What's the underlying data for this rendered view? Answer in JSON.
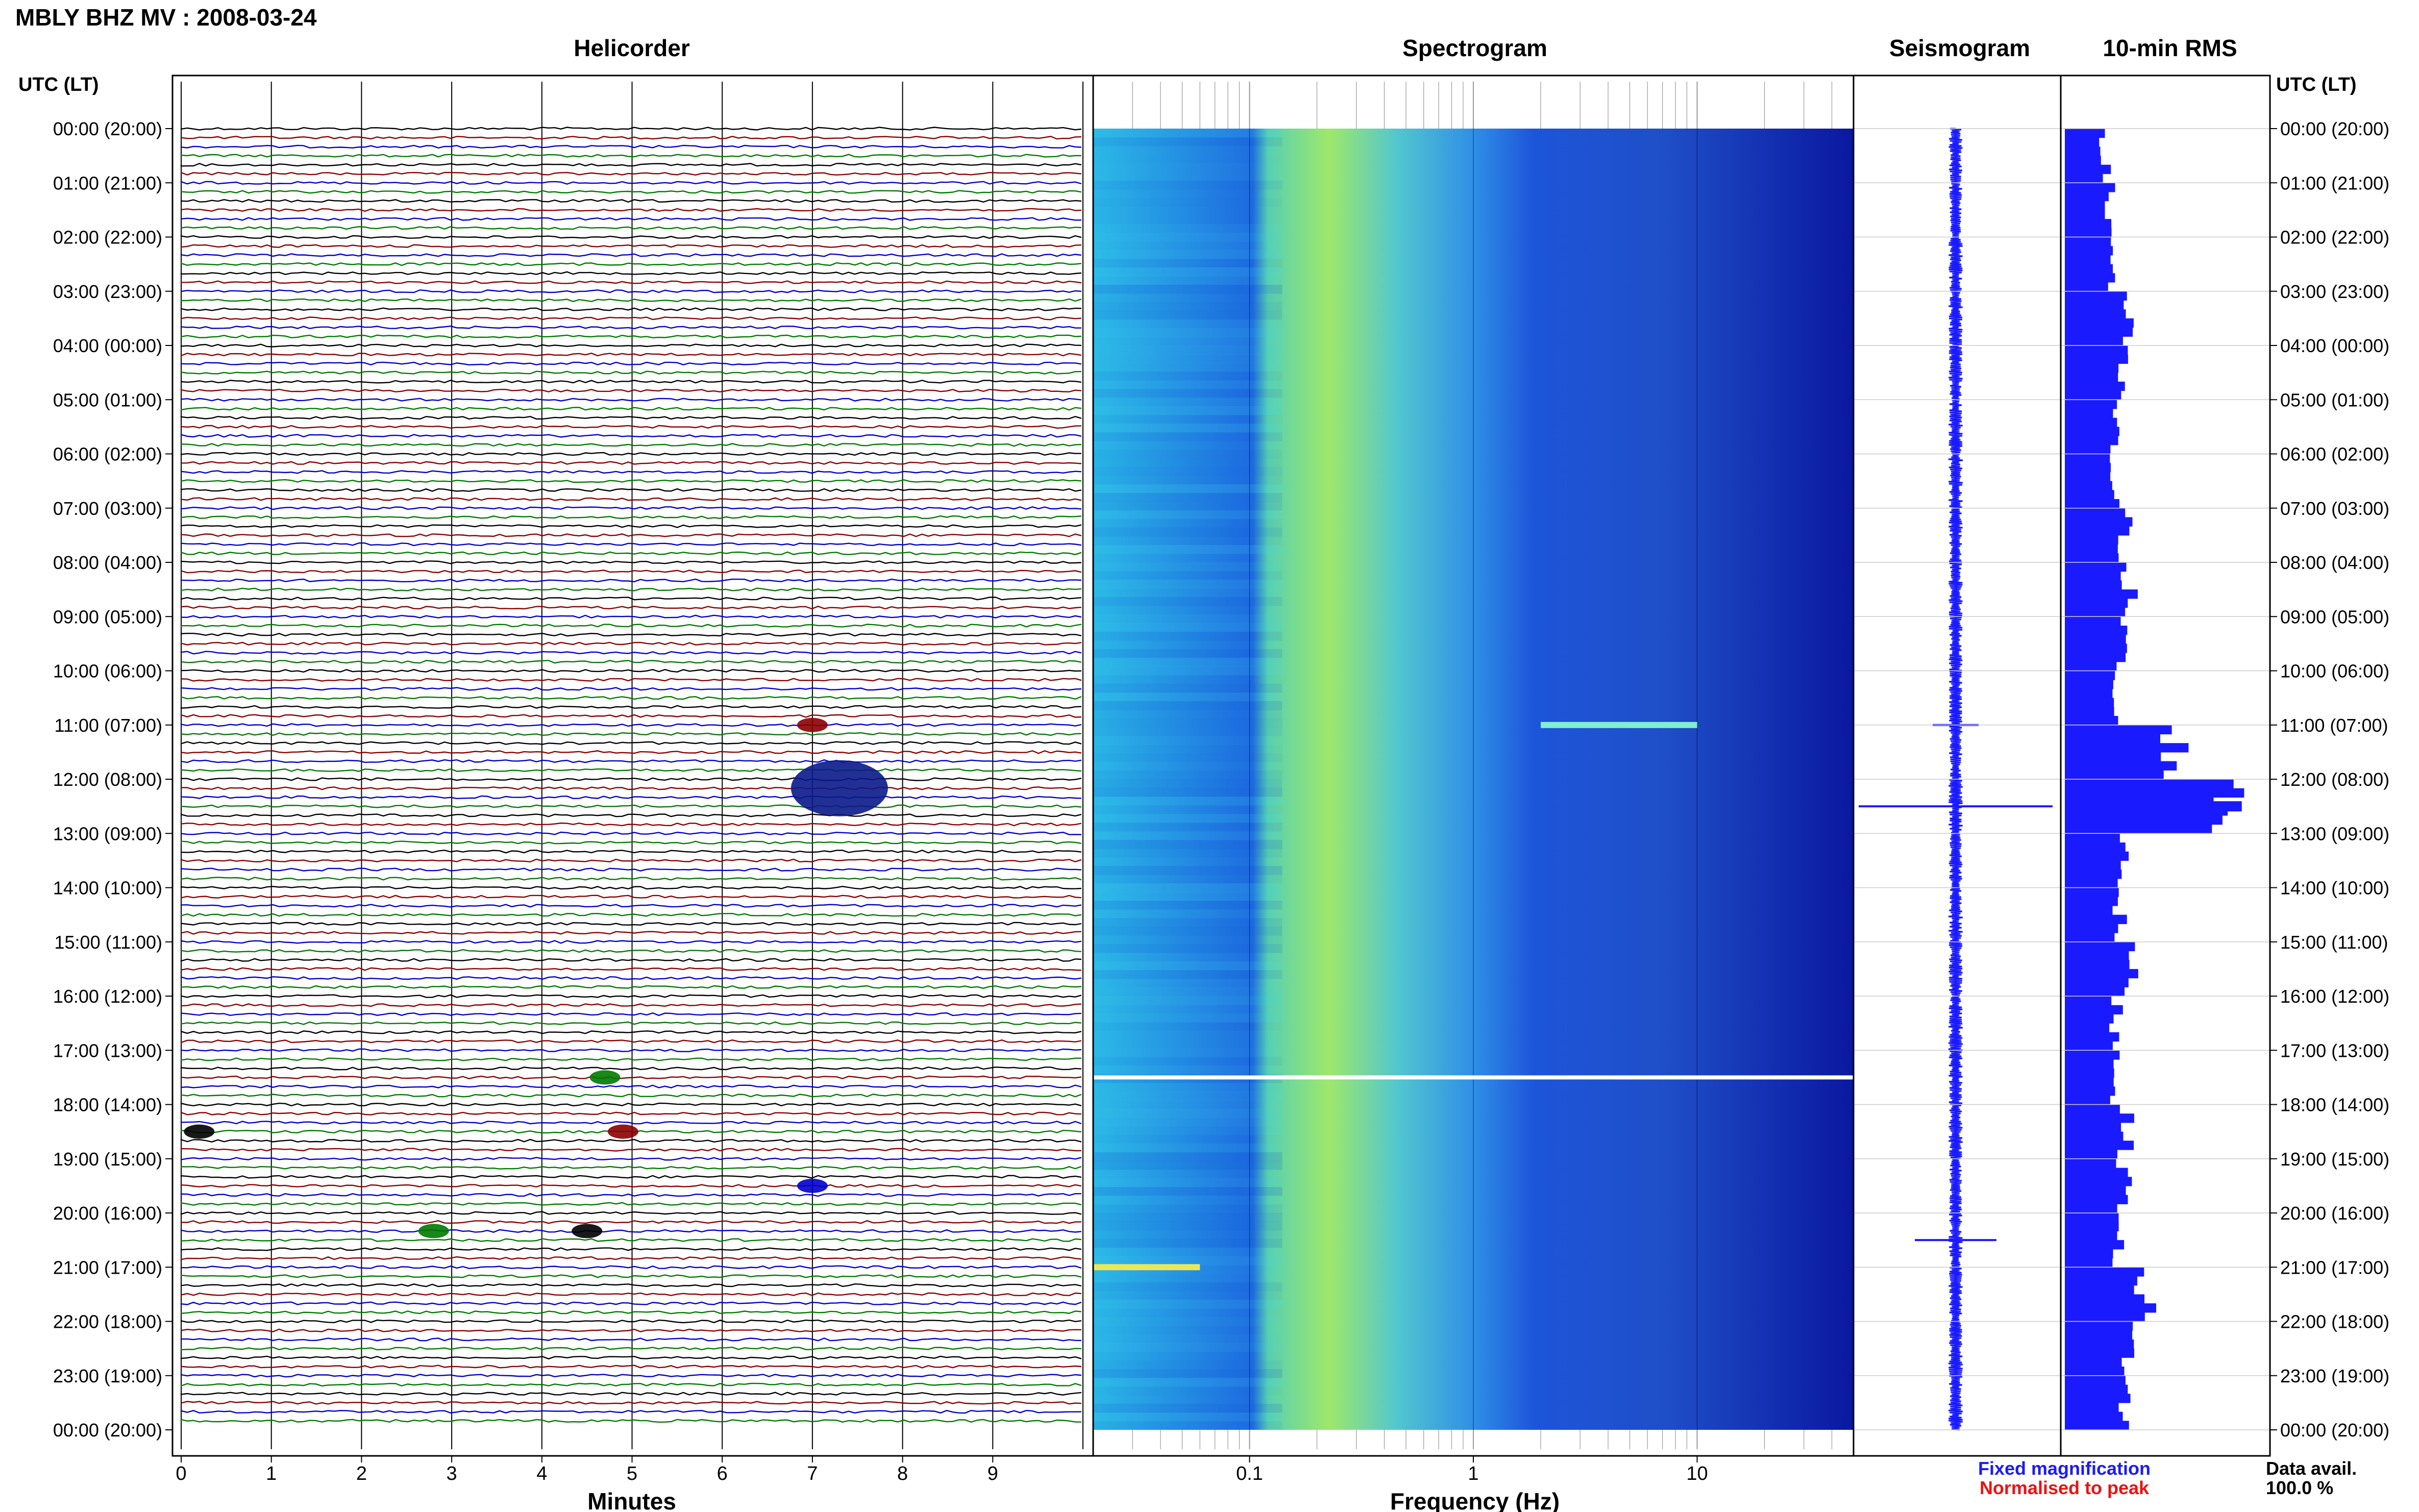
{
  "header": {
    "station_title": "MBLY BHZ MV : 2008-03-24",
    "helicorder_title": "Helicorder",
    "spectrogram_title": "Spectrogram",
    "seismogram_title": "Seismogram",
    "rms_title": "10-min RMS",
    "utc_lt_left": "UTC (LT)",
    "utc_lt_right": "UTC (LT)"
  },
  "time_labels": [
    "00:00 (20:00)",
    "01:00 (21:00)",
    "02:00 (22:00)",
    "03:00 (23:00)",
    "04:00 (00:00)",
    "05:00 (01:00)",
    "06:00 (02:00)",
    "07:00 (03:00)",
    "08:00 (04:00)",
    "09:00 (05:00)",
    "10:00 (06:00)",
    "11:00 (07:00)",
    "12:00 (08:00)",
    "13:00 (09:00)",
    "14:00 (10:00)",
    "15:00 (11:00)",
    "16:00 (12:00)",
    "17:00 (13:00)",
    "18:00 (14:00)",
    "19:00 (15:00)",
    "20:00 (16:00)",
    "21:00 (17:00)",
    "22:00 (18:00)",
    "23:00 (19:00)",
    "00:00 (20:00)"
  ],
  "footer": {
    "fixed_magnification": "Fixed magnification",
    "normalised_to_peak": "Normalised to peak",
    "data_avail_label": "Data avail.",
    "data_avail_value": "100.0 %"
  },
  "colors": {
    "trace_cycle": [
      "#000000",
      "#8b0000",
      "#0000cc",
      "#007a00"
    ],
    "fixed_magnification": "#1a1aff",
    "normalised_to_peak": "#ee1111",
    "seismogram": "#1a1aff",
    "rms_bar": "#1a1aff"
  },
  "chart_data": [
    {
      "type": "line",
      "title": "Helicorder",
      "xlabel": "Minutes",
      "x_ticks": [
        "0",
        "1",
        "2",
        "3",
        "4",
        "5",
        "6",
        "7",
        "8",
        "9"
      ],
      "xlim": [
        0,
        10
      ],
      "rows": 144,
      "minutes_per_row": 10,
      "events": [
        {
          "time_utc": "11:00",
          "minute": 7.0,
          "note": "long-period shaking across row"
        },
        {
          "time_utc": "12:10",
          "minute": 7.3,
          "note": "largest event"
        },
        {
          "time_utc": "17:30",
          "minute": 4.7
        },
        {
          "time_utc": "18:30",
          "minute": 0.2
        },
        {
          "time_utc": "18:30",
          "minute": 4.9
        },
        {
          "time_utc": "19:30",
          "minute": 7.0
        },
        {
          "time_utc": "20:20",
          "minute": 2.8
        },
        {
          "time_utc": "20:20",
          "minute": 4.5
        }
      ]
    },
    {
      "type": "heatmap",
      "title": "Spectrogram",
      "xlabel": "Frequency (Hz)",
      "x_scale": "log",
      "xlim": [
        0.02,
        50
      ],
      "x_ticks": [
        "0.1",
        "1",
        "10"
      ],
      "features": [
        {
          "time_utc": "11:00",
          "freq_range_hz": [
            2,
            10
          ],
          "note": "bright band"
        },
        {
          "time_utc": "17:30",
          "note": "data gap (white line)"
        },
        {
          "time_utc": "21:00",
          "freq_range_hz": [
            0.02,
            0.06
          ],
          "note": "low-frequency energy"
        }
      ]
    },
    {
      "type": "line",
      "title": "Seismogram",
      "peaks_utc": [
        "11:00",
        "12:30",
        "20:30"
      ]
    },
    {
      "type": "bar",
      "title": "10-min RMS",
      "orientation": "horizontal",
      "hourly_levels": [
        0.2,
        0.22,
        0.24,
        0.3,
        0.28,
        0.24,
        0.24,
        0.3,
        0.32,
        0.28,
        0.24,
        0.55,
        0.8,
        0.3,
        0.27,
        0.32,
        0.26,
        0.26,
        0.3,
        0.3,
        0.26,
        0.4,
        0.32,
        0.3
      ],
      "peak": {
        "time_utc": "12:30",
        "level": 1.0
      }
    }
  ]
}
